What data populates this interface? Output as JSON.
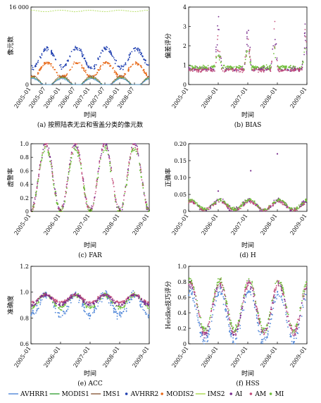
{
  "colors": {
    "AVHRR1": "#4f86d8",
    "MODIS1": "#3aa23a",
    "IMS1": "#8a5a3c",
    "AVHRR2": "#1f3fb0",
    "MODIS2": "#e86a1a",
    "IMS2": "#a8d84a",
    "AI": "#7a2f8f",
    "AM": "#c44e7a",
    "MI": "#6fbf3a"
  },
  "legend": [
    {
      "key": "AVHRR1",
      "label": "AVHRR1",
      "style": "line"
    },
    {
      "key": "MODIS1",
      "label": "MODIS1",
      "style": "line"
    },
    {
      "key": "IMS1",
      "label": "IMS1",
      "style": "line"
    },
    {
      "key": "AVHRR2",
      "label": "AVHRR2",
      "style": "dot"
    },
    {
      "key": "MODIS2",
      "label": "MODIS2",
      "style": "dot"
    },
    {
      "key": "IMS2",
      "label": "IMS2",
      "style": "line"
    },
    {
      "key": "AI",
      "label": "AI",
      "style": "dot"
    },
    {
      "key": "AM",
      "label": "AM",
      "style": "dot"
    },
    {
      "key": "MI",
      "label": "MI",
      "style": "dot"
    }
  ],
  "chart_data": [
    {
      "id": "a",
      "type": "scatter",
      "caption": "(a) 按照陆表无云和雪盖分类的像元数",
      "xlabel": "时间",
      "ylabel": "像元数",
      "ylim": [
        0,
        16000
      ],
      "yticks": [
        "0",
        "16 000"
      ],
      "ytick_values": [
        0,
        16000
      ],
      "xticks": [
        "2005–01",
        "2005–07",
        "2006–01",
        "2006–07",
        "2007–01",
        "2007–07",
        "2008–01",
        "2008–07"
      ],
      "xlim": [
        2005.0,
        2009.0
      ],
      "xtick_values": [
        2005.0,
        2005.5,
        2006.0,
        2006.5,
        2007.0,
        2007.5,
        2008.0,
        2008.5
      ],
      "grid": false,
      "series": [
        {
          "key": "IMS2",
          "render": "line",
          "desc": "near constant",
          "base": 15200,
          "amp": 150,
          "noise": 60
        },
        {
          "key": "AVHRR2",
          "render": "dot",
          "desc": "seasonal, peak summer",
          "base": 5500,
          "amp": 2000,
          "noise": 700,
          "phase": 0.55
        },
        {
          "key": "MODIS2",
          "render": "dot",
          "desc": "seasonal, peak summer",
          "base": 3000,
          "amp": 1500,
          "noise": 500,
          "phase": 0.55
        },
        {
          "key": "IMS1",
          "render": "line",
          "desc": "snow, peak winter",
          "base": 700,
          "amp": 1100,
          "noise": 250,
          "phase": 0.05
        },
        {
          "key": "MODIS1",
          "render": "line",
          "desc": "snow, peak winter",
          "base": 550,
          "amp": 900,
          "noise": 200,
          "phase": 0.05
        },
        {
          "key": "AVHRR1",
          "render": "line",
          "desc": "snow, peak winter",
          "base": 450,
          "amp": 800,
          "noise": 200,
          "phase": 0.05
        }
      ]
    },
    {
      "id": "b",
      "type": "scatter",
      "caption": "(b) BIAS",
      "xlabel": "时间",
      "ylabel": "偏差评分",
      "ylim": [
        0,
        4
      ],
      "yticks": [
        "0",
        "1",
        "2",
        "3",
        "4"
      ],
      "ytick_values": [
        0,
        1,
        2,
        3,
        4
      ],
      "xticks": [
        "2005–01",
        "2006–01",
        "2007–01",
        "2008–01",
        "2009–01"
      ],
      "xlim": [
        2005.0,
        2009.0
      ],
      "xtick_values": [
        2005.0,
        2006.0,
        2007.0,
        2008.0,
        2009.0
      ],
      "grid": false,
      "series": [
        {
          "key": "AI",
          "render": "dot",
          "base": 0.8,
          "spikes": [
            [
              2006.0,
              3.9
            ],
            [
              2007.0,
              3.9
            ],
            [
              2007.9,
              3.9
            ],
            [
              2008.95,
              3.5
            ]
          ],
          "noise": 0.15
        },
        {
          "key": "AM",
          "render": "dot",
          "base": 0.75,
          "spikes": [
            [
              2006.0,
              3.2
            ],
            [
              2007.0,
              3.5
            ],
            [
              2007.9,
              3.6
            ],
            [
              2008.95,
              3.2
            ]
          ],
          "noise": 0.15
        },
        {
          "key": "MI",
          "render": "dot",
          "base": 0.9,
          "spikes": [
            [
              2006.0,
              2.4
            ],
            [
              2007.0,
              2.6
            ],
            [
              2007.9,
              2.6
            ],
            [
              2008.95,
              2.4
            ]
          ],
          "noise": 0.15
        }
      ]
    },
    {
      "id": "c",
      "type": "scatter",
      "caption": "(c) FAR",
      "xlabel": "时间",
      "ylabel": "虚警率",
      "ylim": [
        0,
        1.0
      ],
      "yticks": [
        "0",
        "0.2",
        "0.4",
        "0.6",
        "0.8",
        "1.0"
      ],
      "ytick_values": [
        0,
        0.2,
        0.4,
        0.6,
        0.8,
        1.0
      ],
      "xticks": [
        "2005–01",
        "2006–01",
        "2007–01",
        "2008–01",
        "2009–01"
      ],
      "xlim": [
        2005.0,
        2009.0
      ],
      "xtick_values": [
        2005.0,
        2006.0,
        2007.0,
        2008.0,
        2009.0
      ],
      "grid": false,
      "series": [
        {
          "key": "AI",
          "render": "dot",
          "base": 0.5,
          "amp": 0.5,
          "phase": 0.5,
          "noise": 0.07,
          "clip": [
            0,
            1
          ]
        },
        {
          "key": "AM",
          "render": "dot",
          "base": 0.5,
          "amp": 0.5,
          "phase": 0.5,
          "noise": 0.07,
          "clip": [
            0,
            1
          ]
        },
        {
          "key": "MI",
          "render": "dot",
          "base": 0.47,
          "amp": 0.47,
          "phase": 0.5,
          "noise": 0.08,
          "clip": [
            0,
            1
          ]
        }
      ]
    },
    {
      "id": "d",
      "type": "scatter",
      "caption": "(d) H",
      "xlabel": "时间",
      "ylabel": "正确率",
      "ylim": [
        0,
        0.2
      ],
      "yticks": [
        "0",
        "0.05",
        "0.10",
        "0.15",
        "0.20"
      ],
      "ytick_values": [
        0,
        0.05,
        0.1,
        0.15,
        0.2
      ],
      "xticks": [
        "2005–01",
        "2006–01",
        "2007–01",
        "2008–01",
        "2009–01"
      ],
      "xlim": [
        2005.0,
        2009.0
      ],
      "xtick_values": [
        2005.0,
        2006.0,
        2007.0,
        2008.0,
        2009.0
      ],
      "grid": false,
      "series": [
        {
          "key": "AI",
          "render": "dot",
          "base": 0.018,
          "amp": 0.014,
          "phase": 0.05,
          "noise": 0.009,
          "outliers": [
            [
              2007.1,
              0.12
            ],
            [
              2008.0,
              0.17
            ],
            [
              2006.0,
              0.06
            ]
          ]
        },
        {
          "key": "AM",
          "render": "dot",
          "base": 0.017,
          "amp": 0.013,
          "phase": 0.05,
          "noise": 0.008
        },
        {
          "key": "MI",
          "render": "dot",
          "base": 0.02,
          "amp": 0.014,
          "phase": 0.05,
          "noise": 0.007
        }
      ]
    },
    {
      "id": "e",
      "type": "scatter",
      "caption": "(e) ACC",
      "xlabel": "时间",
      "ylabel": "准确度",
      "ylim": [
        0.6,
        1.2
      ],
      "yticks": [
        "0.6",
        "0.8",
        "1.0",
        "1.2"
      ],
      "ytick_values": [
        0.6,
        0.8,
        1.0,
        1.2
      ],
      "xticks": [
        "2005–01",
        "2006–01",
        "2007–01",
        "2008–01",
        "2009–01"
      ],
      "xlim": [
        2005.0,
        2009.0
      ],
      "xtick_values": [
        2005.0,
        2006.0,
        2007.0,
        2008.0,
        2009.0
      ],
      "grid": false,
      "series": [
        {
          "key": "AVHRR1",
          "render": "dot",
          "base": 0.9,
          "amp": 0.08,
          "phase": 0.5,
          "noise": 0.05
        },
        {
          "key": "MI",
          "render": "dot",
          "base": 0.93,
          "amp": 0.05,
          "phase": 0.5,
          "noise": 0.025
        },
        {
          "key": "AM",
          "render": "dot",
          "base": 0.95,
          "amp": 0.03,
          "phase": 0.5,
          "noise": 0.015
        },
        {
          "key": "AI",
          "render": "dot",
          "base": 0.94,
          "amp": 0.04,
          "phase": 0.5,
          "noise": 0.02
        }
      ]
    },
    {
      "id": "f",
      "type": "scatter",
      "caption": "(f) HSS",
      "xlabel": "时间",
      "ylabel": "Heidke技巧评分",
      "ylim": [
        0,
        1.0
      ],
      "yticks": [
        "0",
        "0.2",
        "0.4",
        "0.6",
        "0.8",
        "1.0"
      ],
      "ytick_values": [
        0,
        0.2,
        0.4,
        0.6,
        0.8,
        1.0
      ],
      "xticks": [
        "2005–01",
        "2006–01",
        "2007–01",
        "2008–01",
        "2009–01"
      ],
      "xlim": [
        2005.0,
        2009.0
      ],
      "xtick_values": [
        2005.0,
        2006.0,
        2007.0,
        2008.0,
        2009.0
      ],
      "grid": false,
      "series": [
        {
          "key": "AVHRR1",
          "render": "dot",
          "base": 0.35,
          "amp": 0.32,
          "phase": 0.05,
          "noise": 0.09,
          "clip": [
            0,
            1
          ]
        },
        {
          "key": "AI",
          "render": "dot",
          "base": 0.45,
          "amp": 0.32,
          "phase": 0.05,
          "noise": 0.08,
          "clip": [
            0,
            1
          ]
        },
        {
          "key": "AM",
          "render": "dot",
          "base": 0.47,
          "amp": 0.32,
          "phase": 0.05,
          "noise": 0.07,
          "clip": [
            0,
            1
          ]
        },
        {
          "key": "MI",
          "render": "dot",
          "base": 0.5,
          "amp": 0.32,
          "phase": 0.05,
          "noise": 0.07,
          "clip": [
            0,
            1
          ]
        }
      ]
    }
  ]
}
